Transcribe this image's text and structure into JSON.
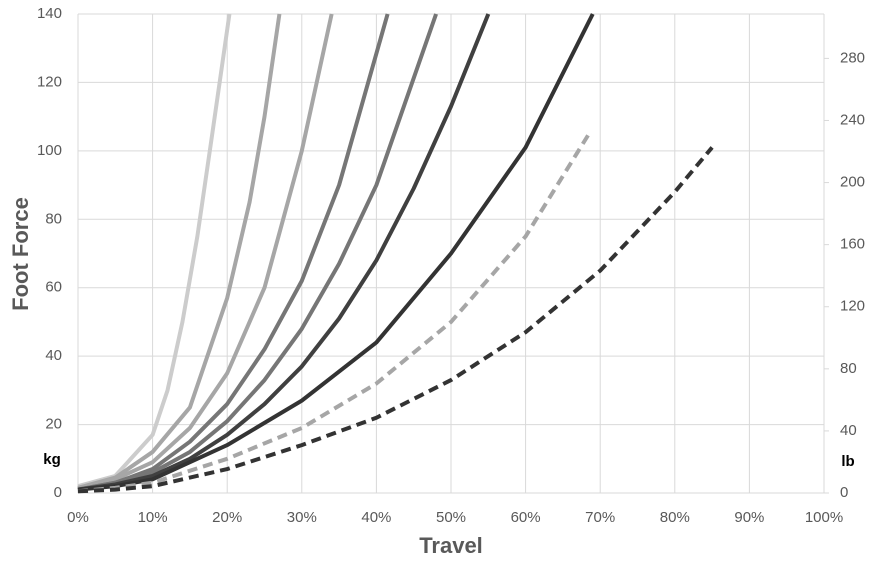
{
  "chart_data": {
    "type": "line",
    "y_label": "Foot Force",
    "x_label": "Travel",
    "y_unit": "kg",
    "y2_unit": "lb",
    "xlim": [
      0,
      100
    ],
    "xticks": [
      {
        "value": 0,
        "label": "0%"
      },
      {
        "value": 10,
        "label": "10%"
      },
      {
        "value": 20,
        "label": "20%"
      },
      {
        "value": 30,
        "label": "30%"
      },
      {
        "value": 40,
        "label": "40%"
      },
      {
        "value": 50,
        "label": "50%"
      },
      {
        "value": 60,
        "label": "60%"
      },
      {
        "value": 70,
        "label": "70%"
      },
      {
        "value": 80,
        "label": "80%"
      },
      {
        "value": 90,
        "label": "90%"
      },
      {
        "value": 100,
        "label": "100%"
      }
    ],
    "ylim": [
      0,
      140
    ],
    "yticks": [
      0,
      20,
      40,
      60,
      80,
      100,
      120,
      140
    ],
    "y2lim": [
      0,
      308.6
    ],
    "y2ticks": [
      0,
      40,
      80,
      120,
      160,
      200,
      240,
      280
    ],
    "grid": true,
    "series": [
      {
        "color": "#cccccc",
        "dashed": false,
        "x": [
          0,
          5,
          10,
          12,
          14,
          16,
          18,
          20.3
        ],
        "values": [
          2,
          5,
          17,
          30,
          50,
          75,
          105,
          140
        ]
      },
      {
        "color": "#a6a6a6",
        "dashed": false,
        "x": [
          0,
          5,
          10,
          15,
          20,
          23,
          25,
          27
        ],
        "values": [
          1.5,
          4.5,
          12,
          25,
          57,
          85,
          110,
          140
        ]
      },
      {
        "color": "#a6a6a6",
        "dashed": false,
        "x": [
          0,
          5,
          10,
          15,
          20,
          25,
          30,
          34
        ],
        "values": [
          1.5,
          4,
          9,
          19,
          35,
          60,
          100,
          140
        ]
      },
      {
        "color": "#767676",
        "dashed": false,
        "x": [
          0,
          5,
          10,
          15,
          20,
          25,
          30,
          35,
          41.5
        ],
        "values": [
          1,
          3,
          7,
          15,
          26,
          42,
          62,
          90,
          140
        ]
      },
      {
        "color": "#767676",
        "dashed": false,
        "x": [
          0,
          5,
          10,
          15,
          20,
          25,
          30,
          35,
          40,
          48
        ],
        "values": [
          1,
          3,
          6,
          12,
          21,
          33,
          48,
          67,
          90,
          140
        ]
      },
      {
        "color": "#404040",
        "dashed": false,
        "x": [
          0,
          5,
          10,
          15,
          20,
          25,
          30,
          35,
          40,
          45,
          50,
          55
        ],
        "values": [
          1,
          2.5,
          5,
          10,
          17,
          26,
          37,
          51,
          68,
          89,
          113,
          140
        ]
      },
      {
        "color": "#333333",
        "dashed": false,
        "x": [
          0,
          5,
          10,
          20,
          30,
          40,
          50,
          60,
          69
        ],
        "values": [
          1,
          2,
          4,
          14,
          27,
          44,
          70,
          101,
          140
        ]
      },
      {
        "color": "#a6a6a6",
        "dashed": true,
        "x": [
          0,
          5,
          10,
          20,
          30,
          40,
          50,
          60,
          68.5
        ],
        "values": [
          0.5,
          1.5,
          3,
          10,
          19,
          32,
          50,
          75,
          105
        ]
      },
      {
        "color": "#333333",
        "dashed": true,
        "x": [
          0,
          5,
          10,
          20,
          30,
          40,
          50,
          60,
          70,
          80,
          85
        ],
        "values": [
          0.5,
          1,
          2,
          7,
          14,
          22,
          33,
          47,
          65,
          88,
          101
        ]
      }
    ]
  }
}
